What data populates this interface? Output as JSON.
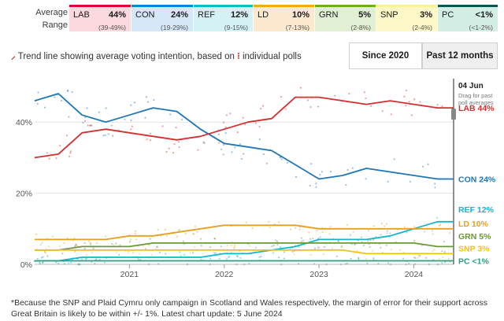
{
  "header": {
    "average_label": "Average",
    "range_label": "Range"
  },
  "parties": [
    {
      "id": "lab",
      "name": "LAB",
      "pct": "44%",
      "range": "(39-49%)",
      "color": "#e4003b",
      "bg": "#fbd9de"
    },
    {
      "id": "con",
      "name": "CON",
      "pct": "24%",
      "range": "(19-29%)",
      "color": "#0087dc",
      "bg": "#d6e8f7"
    },
    {
      "id": "ref",
      "name": "REF",
      "pct": "12%",
      "range": "(9-15%)",
      "color": "#12b6cf",
      "bg": "#d4f1f5"
    },
    {
      "id": "ld",
      "name": "LD",
      "pct": "10%",
      "range": "(7-13%)",
      "color": "#faa61a",
      "bg": "#fde9cf"
    },
    {
      "id": "grn",
      "name": "GRN",
      "pct": "5%",
      "range": "(2-8%)",
      "color": "#6ab023",
      "bg": "#e1f0d4"
    },
    {
      "id": "snp",
      "name": "SNP",
      "pct": "3%",
      "range": "(2-4%)",
      "color": "#fdf38e",
      "bg": "#fdf7c7"
    },
    {
      "id": "pc",
      "name": "PC",
      "pct": "<1%",
      "range": "(<1-2%)",
      "color": "#005b54",
      "bg": "#d3efe5"
    }
  ],
  "subtitle": {
    "part1": "Trend line showing average voting intention, based on",
    "part2": "individual polls"
  },
  "toggles": {
    "since2020": "Since 2020",
    "past12": "Past 12 months"
  },
  "chart_data": {
    "type": "line",
    "title": "Trend line showing average voting intention, based on individual polls",
    "x": [
      2020.0,
      2020.25,
      2020.5,
      2020.75,
      2021.0,
      2021.25,
      2021.5,
      2021.75,
      2022.0,
      2022.25,
      2022.5,
      2022.75,
      2023.0,
      2023.25,
      2023.5,
      2023.75,
      2024.0,
      2024.25,
      2024.42
    ],
    "series": [
      {
        "name": "CON",
        "color": "#1d76b8",
        "end_label": "CON 24%",
        "values": [
          46,
          48,
          42,
          40,
          42,
          44,
          43,
          38,
          34,
          33,
          32,
          28,
          24,
          25,
          27,
          26,
          25,
          24,
          24
        ]
      },
      {
        "name": "LAB",
        "color": "#d32f2f",
        "end_label": "LAB 44%",
        "values": [
          30,
          31,
          37,
          38,
          37,
          36,
          35,
          36,
          38,
          40,
          41,
          47,
          47,
          46,
          45,
          46,
          45,
          44,
          44
        ]
      },
      {
        "name": "REF",
        "color": "#12b6cf",
        "end_label": "REF 12%",
        "values": [
          1,
          1,
          2,
          2,
          2,
          2,
          2,
          2,
          3,
          3,
          4,
          5,
          7,
          7,
          7,
          8,
          10,
          12,
          12
        ]
      },
      {
        "name": "LD",
        "color": "#e6a020",
        "end_label": "LD 10%",
        "values": [
          7,
          7,
          7,
          7,
          8,
          8,
          9,
          10,
          11,
          11,
          11,
          11,
          10,
          10,
          10,
          10,
          10,
          10,
          10
        ]
      },
      {
        "name": "GRN",
        "color": "#6a9a32",
        "end_label": "GRN 5%",
        "values": [
          4,
          4,
          5,
          5,
          5,
          6,
          6,
          6,
          6,
          6,
          6,
          6,
          6,
          6,
          6,
          6,
          6,
          5,
          5
        ]
      },
      {
        "name": "SNP",
        "color": "#f0c020",
        "end_label": "SNP 3%",
        "values": [
          4,
          4,
          4,
          4,
          4,
          4,
          4,
          4,
          4,
          4,
          4,
          4,
          4,
          4,
          3,
          3,
          3,
          3,
          3
        ]
      },
      {
        "name": "PC",
        "color": "#2e9e84",
        "end_label": "PC <1%",
        "values": [
          1,
          1,
          1,
          1,
          1,
          1,
          1,
          1,
          1,
          1,
          1,
          1,
          1,
          1,
          1,
          1,
          1,
          1,
          1
        ]
      }
    ],
    "xlim": [
      2020.0,
      2024.42
    ],
    "ylim": [
      0,
      50
    ],
    "ytick_labels": [
      "0%",
      "20%",
      "40%"
    ],
    "yticks": [
      0,
      20,
      40
    ],
    "xtick_labels": [
      "2021",
      "2022",
      "2023",
      "2024"
    ],
    "xticks": [
      2021.0,
      2022.0,
      2023.0,
      2024.0
    ],
    "date_marker": {
      "x": 2024.42,
      "label": "04 Jun",
      "hint": "Drag for past poll averages"
    }
  },
  "footnote": "*Because the SNP and Plaid Cymru only campaign in Scotland and Wales respectively, the margin of error for their support across Great Britain is likely to be within +/- 1%. Latest chart update: 5 June 2024"
}
